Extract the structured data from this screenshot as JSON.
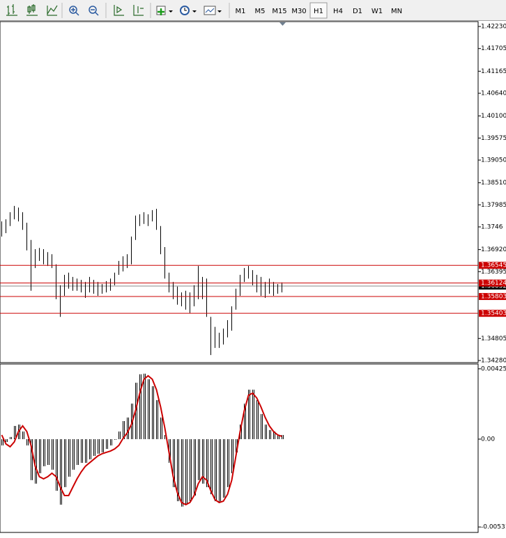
{
  "toolbar": {
    "timeframes": [
      "M1",
      "M5",
      "M15",
      "M30",
      "H1",
      "H4",
      "D1",
      "W1",
      "MN"
    ],
    "active": "H1"
  },
  "chart_data": [
    {
      "type": "ohlc",
      "color": "#000000",
      "highs": [
        1.3759,
        1.3764,
        1.3781,
        1.3796,
        1.3792,
        1.3781,
        1.3756,
        1.3715,
        1.3693,
        1.3696,
        1.3693,
        1.3686,
        1.3681,
        1.3657,
        1.3607,
        1.3632,
        1.3637,
        1.3627,
        1.3623,
        1.362,
        1.3615,
        1.3627,
        1.362,
        1.3615,
        1.361,
        1.3617,
        1.3623,
        1.3637,
        1.3665,
        1.3676,
        1.3681,
        1.3723,
        1.3773,
        1.3776,
        1.3781,
        1.3776,
        1.3786,
        1.3789,
        1.3748,
        1.3698,
        1.3637,
        1.3615,
        1.3604,
        1.359,
        1.3594,
        1.359,
        1.3607,
        1.3653,
        1.3627,
        1.3623,
        1.3532,
        1.3508,
        1.3494,
        1.3504,
        1.3524,
        1.3557,
        1.3599,
        1.3632,
        1.3648,
        1.3653,
        1.3643,
        1.3632,
        1.3627,
        1.3615,
        1.3623,
        1.3615,
        1.361,
        1.3614
      ],
      "lows": [
        1.3723,
        1.3731,
        1.3748,
        1.3764,
        1.3759,
        1.3739,
        1.369,
        1.3594,
        1.3648,
        1.3665,
        1.3657,
        1.3653,
        1.3648,
        1.3574,
        1.3532,
        1.3582,
        1.3599,
        1.3594,
        1.3594,
        1.359,
        1.3577,
        1.359,
        1.3587,
        1.3582,
        1.3587,
        1.359,
        1.3594,
        1.3607,
        1.3632,
        1.364,
        1.3648,
        1.3657,
        1.3715,
        1.3748,
        1.3753,
        1.3748,
        1.3759,
        1.3739,
        1.3681,
        1.3623,
        1.359,
        1.3574,
        1.3561,
        1.3557,
        1.3549,
        1.3541,
        1.3557,
        1.3574,
        1.3574,
        1.3532,
        1.3441,
        1.3458,
        1.3458,
        1.3466,
        1.3483,
        1.3499,
        1.3549,
        1.3582,
        1.3615,
        1.3623,
        1.3607,
        1.359,
        1.3582,
        1.3577,
        1.3587,
        1.3582,
        1.3587,
        1.359
      ],
      "ylim": [
        1.3423,
        1.4233
      ],
      "yticks": [
        {
          "value": 1.4223,
          "label": "1.42230"
        },
        1.41705,
        1.41165,
        {
          "value": 1.4064,
          "label": "1.40640"
        },
        {
          "value": 1.401,
          "label": "1.40100"
        },
        1.39575,
        {
          "value": 1.3905,
          "label": "1.39050"
        },
        {
          "value": 1.3851,
          "label": "1.38510"
        },
        1.37985,
        1.3746,
        {
          "value": 1.3692,
          "label": "1.36920"
        },
        1.36395,
        1.34805,
        {
          "value": 1.3428,
          "label": "1.34280"
        }
      ],
      "current_price": 1.36052,
      "levels": [
        1.36545,
        1.36124,
        1.35803,
        1.35403
      ],
      "level_color": "#cc0000"
    },
    {
      "type": "macd",
      "color": "#000000",
      "signal_color": "#cc0000",
      "values": [
        -0.00038,
        -0.00017,
        0.00013,
        0.0008,
        0.00088,
        0.00046,
        -0.00038,
        -0.00248,
        -0.00269,
        -0.00206,
        -0.00164,
        -0.00156,
        -0.00185,
        -0.00312,
        -0.00396,
        -0.0029,
        -0.00227,
        -0.00185,
        -0.00156,
        -0.00143,
        -0.00143,
        -0.00122,
        -0.00101,
        -0.00088,
        -0.0008,
        -0.00059,
        -0.00038,
        -4e-05,
        0.00046,
        0.00109,
        0.00131,
        0.00215,
        0.00341,
        0.00392,
        0.00396,
        0.00362,
        0.0032,
        0.00236,
        0.00131,
        0.00025,
        -0.00143,
        -0.0029,
        -0.00375,
        -0.00408,
        -0.00396,
        -0.00375,
        -0.00341,
        -0.00248,
        -0.00269,
        -0.0029,
        -0.00333,
        -0.00375,
        -0.00383,
        -0.00354,
        -0.0029,
        -0.00206,
        -0.0008,
        0.00088,
        0.00215,
        0.00299,
        0.00299,
        0.00236,
        0.00152,
        0.00088,
        0.00055,
        0.00046,
        0.00025,
        0.00025
      ],
      "signal": [
        0.00025,
        -0.00029,
        -0.00046,
        -0.00017,
        0.00046,
        0.0008,
        0.00046,
        -0.00038,
        -0.00164,
        -0.00227,
        -0.0024,
        -0.00227,
        -0.00206,
        -0.00227,
        -0.0029,
        -0.00341,
        -0.00341,
        -0.0029,
        -0.0024,
        -0.00198,
        -0.00164,
        -0.00143,
        -0.00122,
        -0.00101,
        -0.00088,
        -0.0008,
        -0.00072,
        -0.00059,
        -0.00038,
        4e-05,
        0.00038,
        0.00088,
        0.00173,
        0.00278,
        0.00362,
        0.00383,
        0.00362,
        0.00299,
        0.00194,
        0.00067,
        -0.0008,
        -0.00227,
        -0.00324,
        -0.00383,
        -0.00396,
        -0.00383,
        -0.00341,
        -0.00269,
        -0.00227,
        -0.00248,
        -0.00312,
        -0.00366,
        -0.00383,
        -0.00375,
        -0.00333,
        -0.00248,
        -0.00101,
        0.00046,
        0.00173,
        0.00265,
        0.00278,
        0.00248,
        0.00194,
        0.00131,
        0.0008,
        0.00046,
        0.00025,
        0.00017
      ],
      "ylim": [
        -0.00564,
        0.0045
      ],
      "yticks": [
        0.004252,
        {
          "value": 0,
          "label": "0.00"
        },
        -0.00531
      ]
    }
  ]
}
